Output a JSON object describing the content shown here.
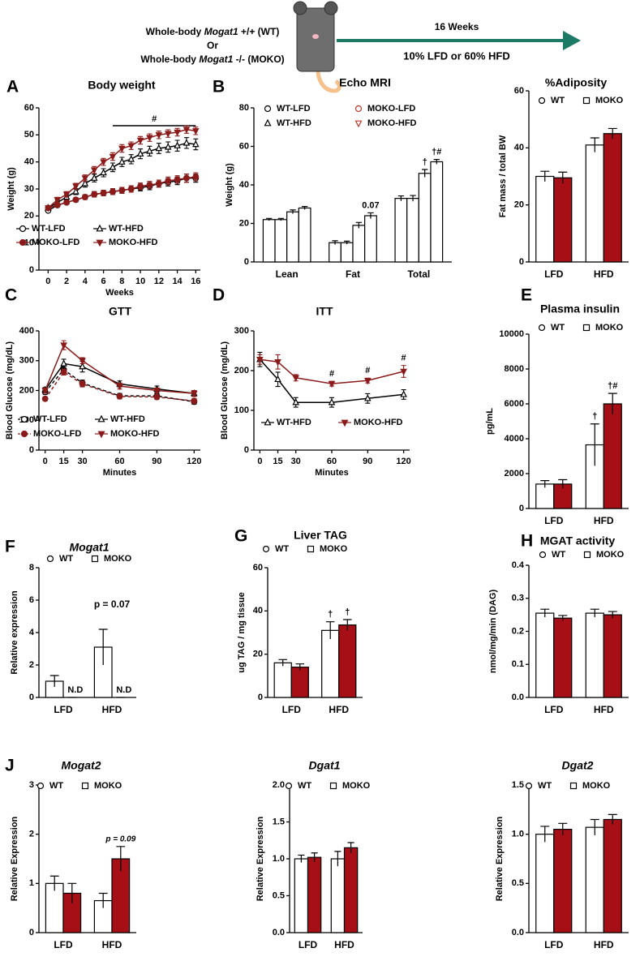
{
  "header": {
    "line1": [
      "Whole-body ",
      "Mogat1",
      " +/+ (WT)"
    ],
    "line2": "Or",
    "line3": [
      "Whole-body ",
      "Mogat1",
      " -/- (MOKO)"
    ],
    "duration": "16 Weeks",
    "diet": "10% LFD or 60% HFD"
  },
  "chart_data": [
    {
      "type": "line",
      "panel": "A",
      "title": "Body weight",
      "ylabel": "Weight (g)",
      "xlabel": "Weeks",
      "x": [
        0,
        1,
        2,
        3,
        4,
        5,
        6,
        7,
        8,
        9,
        10,
        11,
        12,
        13,
        14,
        15,
        16
      ],
      "xlim": [
        -1,
        16.5
      ],
      "xticks": [
        0,
        2,
        4,
        6,
        8,
        10,
        12,
        14,
        16
      ],
      "ylim": [
        0,
        60
      ],
      "yticks": [
        0,
        10,
        20,
        30,
        40,
        50,
        60
      ],
      "bracket": {
        "text": "#",
        "x": [
          7,
          16
        ]
      },
      "series": [
        {
          "name": "WT-LFD",
          "color": "#000000",
          "marker": "circle",
          "filled": false,
          "values": [
            22,
            24,
            25,
            26,
            27,
            28,
            28.5,
            29,
            29.5,
            30,
            30.5,
            31,
            32,
            32.5,
            33,
            34,
            34
          ],
          "errors": [
            0.6,
            0.6,
            0.7,
            0.8,
            0.9,
            1,
            1,
            1.1,
            1.1,
            1.2,
            1.2,
            1.3,
            1.3,
            1.4,
            1.4,
            1.5,
            1.5
          ]
        },
        {
          "name": "WT-HFD",
          "color": "#000000",
          "marker": "triangle-up",
          "filled": false,
          "values": [
            23,
            25,
            27,
            29,
            32,
            34,
            36,
            38,
            40,
            41,
            43,
            44,
            45,
            45.5,
            46,
            47,
            46.5
          ],
          "errors": [
            0.8,
            0.9,
            1,
            1.1,
            1.3,
            1.4,
            1.5,
            1.6,
            1.7,
            1.7,
            1.8,
            1.8,
            1.9,
            1.9,
            2,
            2,
            2
          ]
        },
        {
          "name": "MOKO-LFD",
          "color": "#8b1a1a",
          "marker": "circle",
          "filled": true,
          "values": [
            23,
            24,
            25,
            26,
            27,
            28,
            28.5,
            29,
            29.5,
            30,
            31,
            31.5,
            32,
            33,
            33.5,
            34,
            34.5
          ],
          "errors": [
            0.6,
            0.6,
            0.7,
            0.8,
            0.9,
            1,
            1,
            1.1,
            1.1,
            1.2,
            1.2,
            1.3,
            1.3,
            1.4,
            1.4,
            1.5,
            1.5
          ]
        },
        {
          "name": "MOKO-HFD",
          "color": "#8b1a1a",
          "marker": "triangle-down",
          "filled": true,
          "values": [
            23,
            26,
            28,
            31,
            34,
            37,
            40,
            42,
            45,
            46,
            48,
            49,
            50,
            50.5,
            51,
            52,
            51.5
          ],
          "errors": [
            0.8,
            0.9,
            1,
            1.1,
            1.2,
            1.3,
            1.3,
            1.4,
            1.4,
            1.4,
            1.4,
            1.4,
            1.4,
            1.4,
            1.4,
            1.4,
            1.4
          ]
        }
      ]
    },
    {
      "type": "bar",
      "panel": "B",
      "title": "Echo MRI",
      "ylabel": "Weight (g)",
      "categories": [
        "Lean",
        "Fat",
        "Total"
      ],
      "ylim": [
        0,
        80
      ],
      "yticks": [
        0,
        20,
        40,
        60,
        80
      ],
      "edge_color": "#000000",
      "series": [
        {
          "name": "WT-LFD",
          "color": "#000000",
          "marker": "circle",
          "fill": "#ffffff",
          "values": [
            22,
            10,
            33
          ],
          "errors": [
            0.6,
            1,
            1.3
          ]
        },
        {
          "name": "MOKO-LFD",
          "color": "#c0392b",
          "marker": "circle",
          "fill": "#ffffff",
          "values": [
            22,
            10,
            33
          ],
          "errors": [
            0.6,
            0.8,
            1.5
          ]
        },
        {
          "name": "WT-HFD",
          "color": "#000000",
          "marker": "triangle-up",
          "fill": "#ffffff",
          "values": [
            26,
            19,
            46
          ],
          "errors": [
            1,
            1.5,
            2
          ],
          "annotations": [
            null,
            null,
            "†"
          ]
        },
        {
          "name": "MOKO-HFD",
          "color": "#c0392b",
          "marker": "triangle-down",
          "fill": "#ffffff",
          "values": [
            28,
            24,
            52
          ],
          "errors": [
            0.8,
            1.5,
            1.2
          ],
          "annotations": [
            null,
            "0.07",
            "†#"
          ]
        }
      ]
    },
    {
      "type": "bar",
      "title": "%Adiposity",
      "ylabel": "Fat mass / total BW",
      "categories": [
        "LFD",
        "HFD"
      ],
      "ylim": [
        0,
        60
      ],
      "yticks": [
        0,
        20,
        40,
        60
      ],
      "edge_color": "#000000",
      "series": [
        {
          "name": "WT",
          "color": "#000000",
          "marker": "circle",
          "fill": "#ffffff",
          "values": [
            30,
            41
          ],
          "errors": [
            1.8,
            2.5
          ]
        },
        {
          "name": "MOKO",
          "color": "#000000",
          "marker": "square",
          "fill": "#a50f15",
          "values": [
            29.5,
            45
          ],
          "errors": [
            2,
            1.8
          ]
        }
      ]
    },
    {
      "type": "line",
      "panel": "C",
      "title": "GTT",
      "ylabel": "Blood Glucose (mg/dL)",
      "xlabel": "Minutes",
      "x": [
        0,
        15,
        30,
        60,
        90,
        120
      ],
      "xlim": [
        -5,
        125
      ],
      "xticks": [
        0,
        15,
        30,
        60,
        90,
        120
      ],
      "ylim": [
        0,
        400
      ],
      "yticks": [
        0,
        100,
        200,
        300,
        400
      ],
      "series": [
        {
          "name": "WT-LFD",
          "color": "#000000",
          "marker": "circle",
          "filled": false,
          "dashed": true,
          "values": [
            195,
            270,
            225,
            182,
            182,
            162
          ],
          "errors": [
            8,
            12,
            10,
            8,
            8,
            8
          ]
        },
        {
          "name": "WT-HFD",
          "color": "#000000",
          "marker": "triangle-up",
          "filled": false,
          "values": [
            202,
            290,
            280,
            222,
            205,
            190
          ],
          "errors": [
            8,
            15,
            18,
            10,
            10,
            10
          ]
        },
        {
          "name": "MOKO-LFD",
          "color": "#8b1a1a",
          "marker": "circle",
          "filled": true,
          "dashed": true,
          "values": [
            172,
            262,
            222,
            180,
            178,
            165
          ],
          "errors": [
            6,
            10,
            10,
            8,
            8,
            8
          ]
        },
        {
          "name": "MOKO-HFD",
          "color": "#8b1a1a",
          "marker": "triangle-down",
          "filled": true,
          "values": [
            200,
            352,
            300,
            215,
            200,
            190
          ],
          "errors": [
            8,
            15,
            10,
            10,
            8,
            10
          ]
        }
      ]
    },
    {
      "type": "line",
      "panel": "D",
      "title": "ITT",
      "ylabel": "Blood Glucose (mg/dL)",
      "xlabel": "Minutes",
      "x": [
        0,
        15,
        30,
        60,
        90,
        120
      ],
      "xlim": [
        -5,
        125
      ],
      "xticks": [
        0,
        15,
        30,
        60,
        90,
        120
      ],
      "ylim": [
        0,
        300
      ],
      "yticks": [
        0,
        100,
        200,
        300
      ],
      "series": [
        {
          "name": "WT-HFD",
          "color": "#000000",
          "marker": "triangle-up",
          "filled": false,
          "values": [
            228,
            178,
            120,
            120,
            130,
            140
          ],
          "errors": [
            18,
            18,
            12,
            12,
            12,
            12
          ]
        },
        {
          "name": "MOKO-HFD",
          "color": "#8b1a1a",
          "marker": "triangle-down",
          "filled": true,
          "values": [
            228,
            222,
            182,
            167,
            175,
            198
          ],
          "errors": [
            12,
            18,
            8,
            6,
            6,
            15
          ],
          "annotations": [
            null,
            null,
            null,
            "#",
            "#",
            "#"
          ]
        }
      ]
    },
    {
      "type": "bar",
      "panel": "E",
      "title": "Plasma insulin",
      "ylabel": "pg/mL",
      "categories": [
        "LFD",
        "HFD"
      ],
      "ylim": [
        0,
        10000
      ],
      "yticks": [
        0,
        2000,
        4000,
        6000,
        8000,
        10000
      ],
      "edge_color": "#000000",
      "series": [
        {
          "name": "WT",
          "color": "#000000",
          "marker": "circle",
          "fill": "#ffffff",
          "values": [
            1400,
            3650
          ],
          "errors": [
            200,
            1200
          ],
          "annotations": [
            null,
            "†"
          ]
        },
        {
          "name": "MOKO",
          "color": "#000000",
          "marker": "square",
          "fill": "#a50f15",
          "values": [
            1400,
            6000
          ],
          "errors": [
            250,
            600
          ],
          "annotations": [
            null,
            "†#"
          ]
        }
      ]
    },
    {
      "type": "bar",
      "panel": "F",
      "title": "Mogat1",
      "title_style": "italic",
      "ylabel": "Relative expression",
      "categories": [
        "LFD",
        "HFD"
      ],
      "ylim": [
        0,
        8
      ],
      "yticks": [
        0,
        2,
        4,
        6,
        8
      ],
      "edge_color": "#000000",
      "annotations": [
        null,
        "p = 0.07"
      ],
      "series": [
        {
          "name": "WT",
          "color": "#000000",
          "marker": "circle",
          "fill": "#ffffff",
          "values": [
            1.0,
            3.1
          ],
          "errors": [
            0.35,
            1.1
          ]
        },
        {
          "name": "MOKO",
          "color": "#000000",
          "marker": "square",
          "fill": "#a50f15",
          "values": [
            0,
            0
          ],
          "errors": [
            0,
            0
          ],
          "annotations": [
            "N.D",
            "N.D"
          ]
        }
      ]
    },
    {
      "type": "bar",
      "panel": "G",
      "title": "Liver TAG",
      "ylabel": "ug TAG / mg tissue",
      "categories": [
        "LFD",
        "HFD"
      ],
      "ylim": [
        0,
        60
      ],
      "yticks": [
        0,
        20,
        40,
        60
      ],
      "edge_color": "#000000",
      "series": [
        {
          "name": "WT",
          "color": "#000000",
          "marker": "circle",
          "fill": "#ffffff",
          "values": [
            16,
            31
          ],
          "errors": [
            1.5,
            4
          ],
          "annotations": [
            null,
            "†"
          ]
        },
        {
          "name": "MOKO",
          "color": "#000000",
          "marker": "square",
          "fill": "#a50f15",
          "values": [
            14,
            33.5
          ],
          "errors": [
            1.5,
            2.5
          ],
          "annotations": [
            null,
            "†"
          ]
        }
      ]
    },
    {
      "type": "bar",
      "panel": "H",
      "title": "MGAT activity",
      "ylabel": "nmol/mg/min (DAG)",
      "categories": [
        "LFD",
        "HFD"
      ],
      "ylim": [
        0,
        0.4
      ],
      "yticks": [
        {
          "value": 0,
          "label": "0.0"
        },
        0.1,
        0.2,
        0.3,
        0.4
      ],
      "edge_color": "#000000",
      "series": [
        {
          "name": "WT",
          "color": "#000000",
          "marker": "circle",
          "fill": "#ffffff",
          "values": [
            0.255,
            0.255
          ],
          "errors": [
            0.012,
            0.012
          ]
        },
        {
          "name": "MOKO",
          "color": "#000000",
          "marker": "square",
          "fill": "#a50f15",
          "values": [
            0.24,
            0.25
          ],
          "errors": [
            0.008,
            0.01
          ]
        }
      ]
    },
    {
      "type": "bar",
      "panel": "J",
      "title": "Mogat2",
      "title_style": "italic",
      "ylabel": "Relative Expression",
      "categories": [
        "LFD",
        "HFD"
      ],
      "ylim": [
        0,
        3
      ],
      "yticks": [
        0,
        1,
        2,
        3
      ],
      "edge_color": "#000000",
      "series": [
        {
          "name": "WT",
          "color": "#000000",
          "marker": "circle",
          "fill": "#ffffff",
          "values": [
            1.0,
            0.65
          ],
          "errors": [
            0.15,
            0.15
          ]
        },
        {
          "name": "MOKO",
          "color": "#000000",
          "marker": "square",
          "fill": "#a50f15",
          "values": [
            0.8,
            1.5
          ],
          "errors": [
            0.2,
            0.25
          ],
          "annotations": [
            null,
            "p = 0.09"
          ]
        }
      ]
    },
    {
      "type": "bar",
      "title": "Dgat1",
      "title_style": "italic",
      "ylabel": "Relative Expression",
      "categories": [
        "LFD",
        "HFD"
      ],
      "ylim": [
        0,
        2
      ],
      "yticks": [
        {
          "value": 0,
          "label": "0.0"
        },
        0.5,
        {
          "value": 1,
          "label": "1.0"
        },
        1.5,
        {
          "value": 2,
          "label": "2.0"
        }
      ],
      "edge_color": "#000000",
      "series": [
        {
          "name": "WT",
          "color": "#000000",
          "marker": "circle",
          "fill": "#ffffff",
          "values": [
            1.0,
            1.0
          ],
          "errors": [
            0.05,
            0.1
          ]
        },
        {
          "name": "MOKO",
          "color": "#000000",
          "marker": "square",
          "fill": "#a50f15",
          "values": [
            1.02,
            1.15
          ],
          "errors": [
            0.06,
            0.07
          ]
        }
      ]
    },
    {
      "type": "bar",
      "title": "Dgat2",
      "title_style": "italic",
      "ylabel": "Relative Expression",
      "categories": [
        "LFD",
        "HFD"
      ],
      "ylim": [
        0,
        1.5
      ],
      "yticks": [
        {
          "value": 0,
          "label": "0.0"
        },
        0.5,
        {
          "value": 1,
          "label": "1.0"
        },
        1.5
      ],
      "edge_color": "#000000",
      "series": [
        {
          "name": "WT",
          "color": "#000000",
          "marker": "circle",
          "fill": "#ffffff",
          "values": [
            1.0,
            1.07
          ],
          "errors": [
            0.08,
            0.08
          ]
        },
        {
          "name": "MOKO",
          "color": "#000000",
          "marker": "square",
          "fill": "#a50f15",
          "values": [
            1.05,
            1.15
          ],
          "errors": [
            0.06,
            0.05
          ]
        }
      ]
    }
  ]
}
